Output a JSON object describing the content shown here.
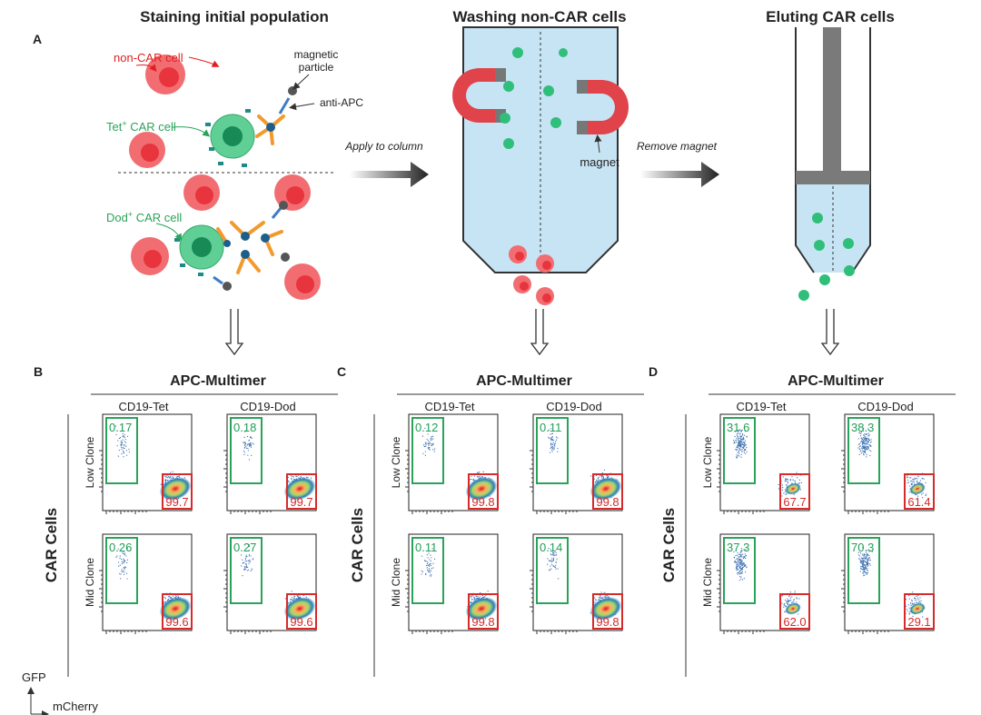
{
  "panel_a": {
    "label": "A",
    "titles": [
      "Staining initial population",
      "Washing non-CAR cells",
      "Eluting CAR cells"
    ],
    "non_car_label": "non-CAR cell",
    "particle_label": [
      "magnetic",
      "particle"
    ],
    "anti_apc_label": "anti-APC",
    "tet_label": {
      "base": "Tet",
      "sup": "+",
      "rest": " CAR cell"
    },
    "dod_label": {
      "base": "Dod",
      "sup": "+",
      "rest": " CAR cell"
    },
    "apply_label": "Apply to column",
    "magnet_label": "magnet",
    "remove_label": "Remove magnet"
  },
  "panels": [
    {
      "label": "B",
      "header": "APC-Multimer",
      "columns": [
        "CD19-Tet",
        "CD19-Dod"
      ],
      "row_title": "CAR Cells",
      "rows": [
        "Low Clone",
        "Mid Clone"
      ],
      "gates": [
        [
          {
            "green": "0.17",
            "red": "99.7"
          },
          {
            "green": "0.18",
            "red": "99.7"
          }
        ],
        [
          {
            "green": "0.26",
            "red": "99.6"
          },
          {
            "green": "0.27",
            "red": "99.6"
          }
        ]
      ]
    },
    {
      "label": "C",
      "header": "APC-Multimer",
      "columns": [
        "CD19-Tet",
        "CD19-Dod"
      ],
      "row_title": "CAR Cells",
      "rows": [
        "Low Clone",
        "Mid Clone"
      ],
      "gates": [
        [
          {
            "green": "0.12",
            "red": "99.8"
          },
          {
            "green": "0.11",
            "red": "99.8"
          }
        ],
        [
          {
            "green": "0.11",
            "red": "99.8"
          },
          {
            "green": "0.14",
            "red": "99.8"
          }
        ]
      ]
    },
    {
      "label": "D",
      "header": "APC-Multimer",
      "columns": [
        "CD19-Tet",
        "CD19-Dod"
      ],
      "row_title": "CAR Cells",
      "rows": [
        "Low Clone",
        "Mid Clone"
      ],
      "gates": [
        [
          {
            "green": "31.6",
            "red": "67.7"
          },
          {
            "green": "38.3",
            "red": "61.4"
          }
        ],
        [
          {
            "green": "37.3",
            "red": "62.0"
          },
          {
            "green": "70.3",
            "red": "29.1"
          }
        ]
      ]
    }
  ],
  "axis_key": {
    "y": "GFP",
    "x": "mCherry"
  }
}
